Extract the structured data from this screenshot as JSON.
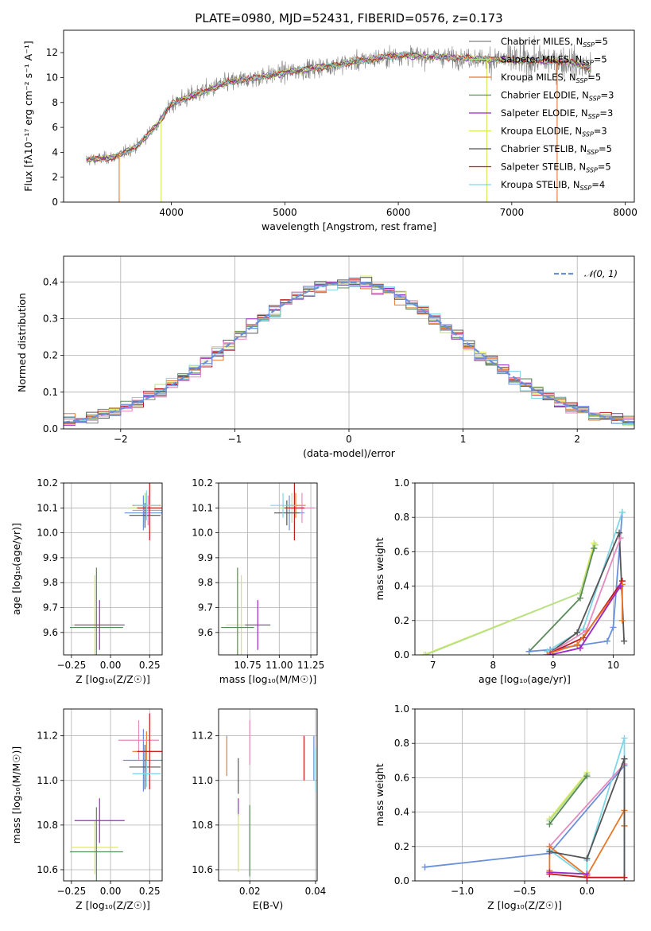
{
  "colors": {
    "blue": "#6a8fdb",
    "orange": "#e8782a",
    "green": "#5a8a5a",
    "purple": "#9b27c9",
    "pink": "#e58ac0",
    "gray": "#555555",
    "olive": "#c6d65a",
    "cyan": "#7fd6e6",
    "red": "#c2181b",
    "lightgreen": "#b8e08a",
    "yellow": "#d7e85a"
  },
  "chart_data": [
    {
      "id": "spectrum",
      "type": "line",
      "title": "PLATE=0980, MJD=52431, FIBERID=0576, z=0.173",
      "xlabel": "wavelength [Angstrom, rest frame]",
      "ylabel": "Flux [fλ10⁻¹⁷ erg cm⁻² s⁻¹ A⁻¹]",
      "xlim": [
        3050,
        8080
      ],
      "ylim": [
        0,
        13.8
      ],
      "xticks": [
        4000,
        5000,
        6000,
        7000,
        8000
      ],
      "yticks": [
        0,
        2,
        4,
        6,
        8,
        10,
        12
      ],
      "legend_position": "upper-right",
      "continuum": {
        "x": [
          3250,
          3500,
          3700,
          3900,
          4000,
          4200,
          4500,
          5000,
          5500,
          6000,
          6500,
          7000,
          7500,
          7700
        ],
        "y": [
          3.4,
          3.6,
          4.5,
          6.5,
          7.9,
          8.6,
          9.6,
          10.4,
          11.1,
          11.8,
          11.6,
          11.4,
          11.3,
          10.7
        ]
      },
      "series": [
        {
          "name": "Chabrier MILES, N_SSP=5",
          "label": "Chabrier MILES, N",
          "sub": "SSP",
          "suffix": "=5",
          "color": "#808080"
        },
        {
          "name": "Salpeter MILES, N_SSP=5",
          "label": "Salpeter MILES, N",
          "sub": "SSP",
          "suffix": "=5",
          "color": "#b8e08a"
        },
        {
          "name": "Kroupa MILES, N_SSP=5",
          "label": "Kroupa MILES, N",
          "sub": "SSP",
          "suffix": "=5",
          "color": "#e8782a"
        },
        {
          "name": "Chabrier ELODIE, N_SSP=3",
          "label": "Chabrier ELODIE, N",
          "sub": "SSP",
          "suffix": "=3",
          "color": "#5a8a5a"
        },
        {
          "name": "Salpeter ELODIE, N_SSP=3",
          "label": "Salpeter ELODIE, N",
          "sub": "SSP",
          "suffix": "=3",
          "color": "#9b27c9"
        },
        {
          "name": "Kroupa ELODIE, N_SSP=3",
          "label": "Kroupa ELODIE, N",
          "sub": "SSP",
          "suffix": "=3",
          "color": "#d7e85a"
        },
        {
          "name": "Chabrier STELIB, N_SSP=5",
          "label": "Chabrier STELIB, N",
          "sub": "SSP",
          "suffix": "=5",
          "color": "#555555"
        },
        {
          "name": "Salpeter STELIB, N_SSP=5",
          "label": "Salpeter STELIB, N",
          "sub": "SSP",
          "suffix": "=5",
          "color": "#c2181b"
        },
        {
          "name": "Kroupa STELIB, N_SSP=4",
          "label": "Kroupa STELIB, N",
          "sub": "SSP",
          "suffix": "=4",
          "color": "#7fd6e6"
        }
      ]
    },
    {
      "id": "residuals",
      "type": "histogram",
      "xlabel": "(data-model)/error",
      "ylabel": "Normed distribution",
      "xlim": [
        -2.5,
        2.5
      ],
      "ylim": [
        0,
        0.47
      ],
      "xticks": [
        -2,
        -1,
        0,
        1,
        2
      ],
      "yticks": [
        0.0,
        0.1,
        0.2,
        0.3,
        0.4
      ],
      "grid": true,
      "bin_width": 0.1,
      "reference_curve": {
        "name": "𝒩(0, 1)",
        "color": "#6a8fdb",
        "style": "dashed"
      },
      "histogram_colors": [
        "#808080",
        "#b8e08a",
        "#e8782a",
        "#5a8a5a",
        "#9b27c9",
        "#d7e85a",
        "#555555",
        "#c2181b",
        "#7fd6e6",
        "#e58ac0",
        "#6a8fdb"
      ]
    },
    {
      "id": "age-vs-Z",
      "type": "scatter",
      "xlabel": "Z [log₁₀(Z/Z☉)]",
      "ylabel": "age  [log₁₀(age/yr)]",
      "xlim": [
        -0.3,
        0.33
      ],
      "ylim": [
        9.51,
        10.2
      ],
      "xticks": [
        -0.25,
        0.0,
        0.25
      ],
      "xtick_labels": [
        "−0.25",
        "0.00",
        "0.25"
      ],
      "yticks": [
        9.6,
        9.7,
        9.8,
        9.9,
        10.0,
        10.1,
        10.2
      ],
      "grid": true,
      "points": [
        {
          "x": 0.22,
          "y": 10.1,
          "xerr": 0.1,
          "yerr": 0.06,
          "color": "#b8e08a"
        },
        {
          "x": 0.23,
          "y": 10.11,
          "xerr": 0.09,
          "yerr": 0.05,
          "color": "#e8782a"
        },
        {
          "x": 0.21,
          "y": 10.08,
          "xerr": 0.12,
          "yerr": 0.07,
          "color": "#6a8fdb"
        },
        {
          "x": 0.24,
          "y": 10.09,
          "xerr": 0.1,
          "yerr": 0.06,
          "color": "#e58ac0"
        },
        {
          "x": 0.25,
          "y": 10.1,
          "xerr": 0.08,
          "yerr": 0.13,
          "color": "#c2181b"
        },
        {
          "x": 0.22,
          "y": 10.07,
          "xerr": 0.1,
          "yerr": 0.05,
          "color": "#555555"
        },
        {
          "x": 0.23,
          "y": 10.11,
          "xerr": 0.08,
          "yerr": 0.06,
          "color": "#7fd6e6"
        },
        {
          "x": -0.1,
          "y": 9.63,
          "xerr": 0.15,
          "yerr": 0.2,
          "color": "#d7e85a"
        },
        {
          "x": -0.09,
          "y": 9.62,
          "xerr": 0.17,
          "yerr": 0.24,
          "color": "#5a8a5a"
        },
        {
          "x": -0.07,
          "y": 9.63,
          "xerr": 0.16,
          "yerr": 0.1,
          "color": "#9b27c9"
        }
      ]
    },
    {
      "id": "age-vs-mass",
      "type": "scatter",
      "xlabel": "mass [log₁₀(M/M☉)]",
      "ylabel": "",
      "xlim": [
        10.52,
        11.3
      ],
      "ylim": [
        9.51,
        10.2
      ],
      "xticks": [
        10.75,
        11.0,
        11.25
      ],
      "xtick_labels": [
        "10.75",
        "11.00",
        "11.25"
      ],
      "yticks": [
        9.6,
        9.7,
        9.8,
        9.9,
        10.0,
        10.1,
        10.2
      ],
      "grid": true,
      "points": [
        {
          "x": 11.1,
          "y": 10.1,
          "xerr": 0.1,
          "yerr": 0.06,
          "color": "#b8e08a"
        },
        {
          "x": 11.13,
          "y": 10.11,
          "xerr": 0.08,
          "yerr": 0.05,
          "color": "#e8782a"
        },
        {
          "x": 11.08,
          "y": 10.08,
          "xerr": 0.12,
          "yerr": 0.07,
          "color": "#6a8fdb"
        },
        {
          "x": 11.18,
          "y": 10.1,
          "xerr": 0.1,
          "yerr": 0.06,
          "color": "#e58ac0"
        },
        {
          "x": 11.12,
          "y": 10.1,
          "xerr": 0.08,
          "yerr": 0.13,
          "color": "#c2181b"
        },
        {
          "x": 11.06,
          "y": 10.08,
          "xerr": 0.1,
          "yerr": 0.05,
          "color": "#555555"
        },
        {
          "x": 11.03,
          "y": 10.11,
          "xerr": 0.1,
          "yerr": 0.05,
          "color": "#7fd6e6"
        },
        {
          "x": 10.7,
          "y": 9.63,
          "xerr": 0.12,
          "yerr": 0.2,
          "color": "#d7e85a"
        },
        {
          "x": 10.67,
          "y": 9.62,
          "xerr": 0.13,
          "yerr": 0.24,
          "color": "#5a8a5a"
        },
        {
          "x": 10.83,
          "y": 9.63,
          "xerr": 0.1,
          "yerr": 0.1,
          "color": "#9b27c9"
        }
      ]
    },
    {
      "id": "weight-vs-age",
      "type": "line",
      "xlabel": "age  [log₁₀(age/yr)]",
      "ylabel": "mass weight",
      "xlim": [
        6.7,
        10.35
      ],
      "ylim": [
        0,
        1.0
      ],
      "xticks": [
        7,
        8,
        9,
        10
      ],
      "yticks": [
        0.0,
        0.2,
        0.4,
        0.6,
        0.8,
        1.0
      ],
      "grid": true,
      "series": [
        {
          "color": "#d7e85a",
          "x": [
            6.85,
            9.45,
            9.68
          ],
          "y": [
            0.0,
            0.36,
            0.65
          ]
        },
        {
          "color": "#b8e08a",
          "x": [
            6.88,
            9.45,
            9.7
          ],
          "y": [
            0.0,
            0.36,
            0.64
          ]
        },
        {
          "color": "#5a8a5a",
          "x": [
            8.6,
            9.45,
            9.68
          ],
          "y": [
            0.02,
            0.33,
            0.62
          ]
        },
        {
          "color": "#6a8fdb",
          "x": [
            8.6,
            8.95,
            9.9,
            10.0,
            10.15
          ],
          "y": [
            0.02,
            0.03,
            0.08,
            0.16,
            0.83
          ]
        },
        {
          "color": "#7fd6e6",
          "x": [
            8.9,
            9.5,
            10.15
          ],
          "y": [
            0.02,
            0.15,
            0.83
          ]
        },
        {
          "color": "#555555",
          "x": [
            8.9,
            9.4,
            10.1,
            10.18
          ],
          "y": [
            0.0,
            0.13,
            0.71,
            0.08
          ]
        },
        {
          "color": "#e58ac0",
          "x": [
            8.9,
            9.55,
            10.12
          ],
          "y": [
            0.0,
            0.14,
            0.68
          ]
        },
        {
          "color": "#c2181b",
          "x": [
            8.95,
            9.5,
            10.15
          ],
          "y": [
            0.01,
            0.1,
            0.43
          ]
        },
        {
          "color": "#e8782a",
          "x": [
            8.95,
            9.4,
            10.15,
            10.15
          ],
          "y": [
            0.01,
            0.06,
            0.41,
            0.2
          ]
        },
        {
          "color": "#9b27c9",
          "x": [
            8.95,
            9.45,
            10.12
          ],
          "y": [
            0.0,
            0.04,
            0.4
          ]
        }
      ]
    },
    {
      "id": "mass-vs-Z",
      "type": "scatter",
      "xlabel": "Z [log₁₀(Z/Z☉)]",
      "ylabel": "mass [log₁₀(M/M☉)]",
      "xlim": [
        -0.3,
        0.33
      ],
      "ylim": [
        10.55,
        11.32
      ],
      "xticks": [
        -0.25,
        0.0,
        0.25
      ],
      "xtick_labels": [
        "−0.25",
        "0.00",
        "0.25"
      ],
      "yticks": [
        10.6,
        10.8,
        11.0,
        11.2
      ],
      "grid": true,
      "points": [
        {
          "x": 0.23,
          "y": 11.13,
          "xerr": 0.09,
          "yerr": 0.09,
          "color": "#e8782a"
        },
        {
          "x": 0.21,
          "y": 11.09,
          "xerr": 0.13,
          "yerr": 0.14,
          "color": "#6a8fdb"
        },
        {
          "x": 0.18,
          "y": 11.18,
          "xerr": 0.13,
          "yerr": 0.09,
          "color": "#e58ac0"
        },
        {
          "x": 0.25,
          "y": 11.13,
          "xerr": 0.08,
          "yerr": 0.17,
          "color": "#c2181b"
        },
        {
          "x": 0.22,
          "y": 11.06,
          "xerr": 0.1,
          "yerr": 0.1,
          "color": "#555555"
        },
        {
          "x": 0.23,
          "y": 11.03,
          "xerr": 0.09,
          "yerr": 0.06,
          "color": "#7fd6e6"
        },
        {
          "x": -0.1,
          "y": 10.7,
          "xerr": 0.15,
          "yerr": 0.12,
          "color": "#d7e85a"
        },
        {
          "x": -0.09,
          "y": 10.68,
          "xerr": 0.17,
          "yerr": 0.2,
          "color": "#5a8a5a"
        },
        {
          "x": -0.07,
          "y": 10.82,
          "xerr": 0.16,
          "yerr": 0.1,
          "color": "#9b27c9"
        }
      ]
    },
    {
      "id": "mass-vs-ebv",
      "type": "scatter",
      "xlabel": "E(B-V)",
      "ylabel": "",
      "xlim": [
        0.0105,
        0.0405
      ],
      "ylim": [
        10.55,
        11.32
      ],
      "xticks": [
        0.02,
        0.04
      ],
      "xtick_labels": [
        "0.02",
        "0.04"
      ],
      "yticks": [
        10.6,
        10.8,
        11.0,
        11.2
      ],
      "grid": true,
      "points": [
        {
          "x": 0.013,
          "y": 11.11,
          "xerr": 0,
          "yerr": 0.09,
          "color": "#e8782a"
        },
        {
          "x": 0.0165,
          "y": 11.02,
          "xerr": 0,
          "yerr": 0.08,
          "color": "#555555"
        },
        {
          "x": 0.0165,
          "y": 10.88,
          "xerr": 0,
          "yerr": 0.04,
          "color": "#9b27c9"
        },
        {
          "x": 0.0165,
          "y": 10.72,
          "xerr": 0,
          "yerr": 0.13,
          "color": "#d7e85a"
        },
        {
          "x": 0.02,
          "y": 11.17,
          "xerr": 0,
          "yerr": 0.1,
          "color": "#e58ac0"
        },
        {
          "x": 0.02,
          "y": 10.73,
          "xerr": 0,
          "yerr": 0.16,
          "color": "#5a8a5a"
        },
        {
          "x": 0.0365,
          "y": 11.1,
          "xerr": 0,
          "yerr": 0.1,
          "color": "#c2181b"
        },
        {
          "x": 0.0395,
          "y": 11.1,
          "xerr": 0,
          "yerr": 0.1,
          "color": "#6a8fdb"
        },
        {
          "x": 0.04,
          "y": 11.05,
          "xerr": 0,
          "yerr": 0.1,
          "color": "#7fd6e6"
        }
      ]
    },
    {
      "id": "weight-vs-Z",
      "type": "line",
      "xlabel": "Z [log₁₀(Z/Z☉)]",
      "ylabel": "mass weight",
      "xlim": [
        -1.38,
        0.38
      ],
      "ylim": [
        0,
        1.0
      ],
      "xticks": [
        -1.0,
        -0.5,
        0.0
      ],
      "xtick_labels": [
        "−1.0",
        "−0.5",
        "0.0"
      ],
      "yticks": [
        0.0,
        0.2,
        0.4,
        0.6,
        0.8,
        1.0
      ],
      "grid": true,
      "series": [
        {
          "color": "#6a8fdb",
          "x": [
            -1.3,
            -0.3,
            0.3
          ],
          "y": [
            0.08,
            0.16,
            0.67
          ]
        },
        {
          "color": "#d7e85a",
          "x": [
            -0.3,
            0.0
          ],
          "y": [
            0.36,
            0.63
          ]
        },
        {
          "color": "#b8e08a",
          "x": [
            -0.3,
            0.0
          ],
          "y": [
            0.35,
            0.62
          ]
        },
        {
          "color": "#5a8a5a",
          "x": [
            -0.3,
            0.0
          ],
          "y": [
            0.33,
            0.61
          ]
        },
        {
          "color": "#7fd6e6",
          "x": [
            -0.3,
            0.0,
            0.0,
            0.3,
            0.3
          ],
          "y": [
            0.18,
            0.02,
            0.12,
            0.83,
            0.02
          ]
        },
        {
          "color": "#e58ac0",
          "x": [
            -0.3,
            0.3
          ],
          "y": [
            0.2,
            0.68
          ]
        },
        {
          "color": "#e8782a",
          "x": [
            -0.3,
            -0.3,
            0.0,
            0.3,
            0.3
          ],
          "y": [
            0.06,
            0.2,
            0.03,
            0.41,
            0.32
          ]
        },
        {
          "color": "#555555",
          "x": [
            -0.3,
            0.0,
            0.3,
            0.3
          ],
          "y": [
            0.17,
            0.13,
            0.71,
            0.02
          ]
        },
        {
          "color": "#c2181b",
          "x": [
            -0.3,
            0.0,
            0.3
          ],
          "y": [
            0.04,
            0.02,
            0.02
          ]
        },
        {
          "color": "#9b27c9",
          "x": [
            -0.3,
            0.0
          ],
          "y": [
            0.05,
            0.04
          ]
        }
      ]
    }
  ]
}
